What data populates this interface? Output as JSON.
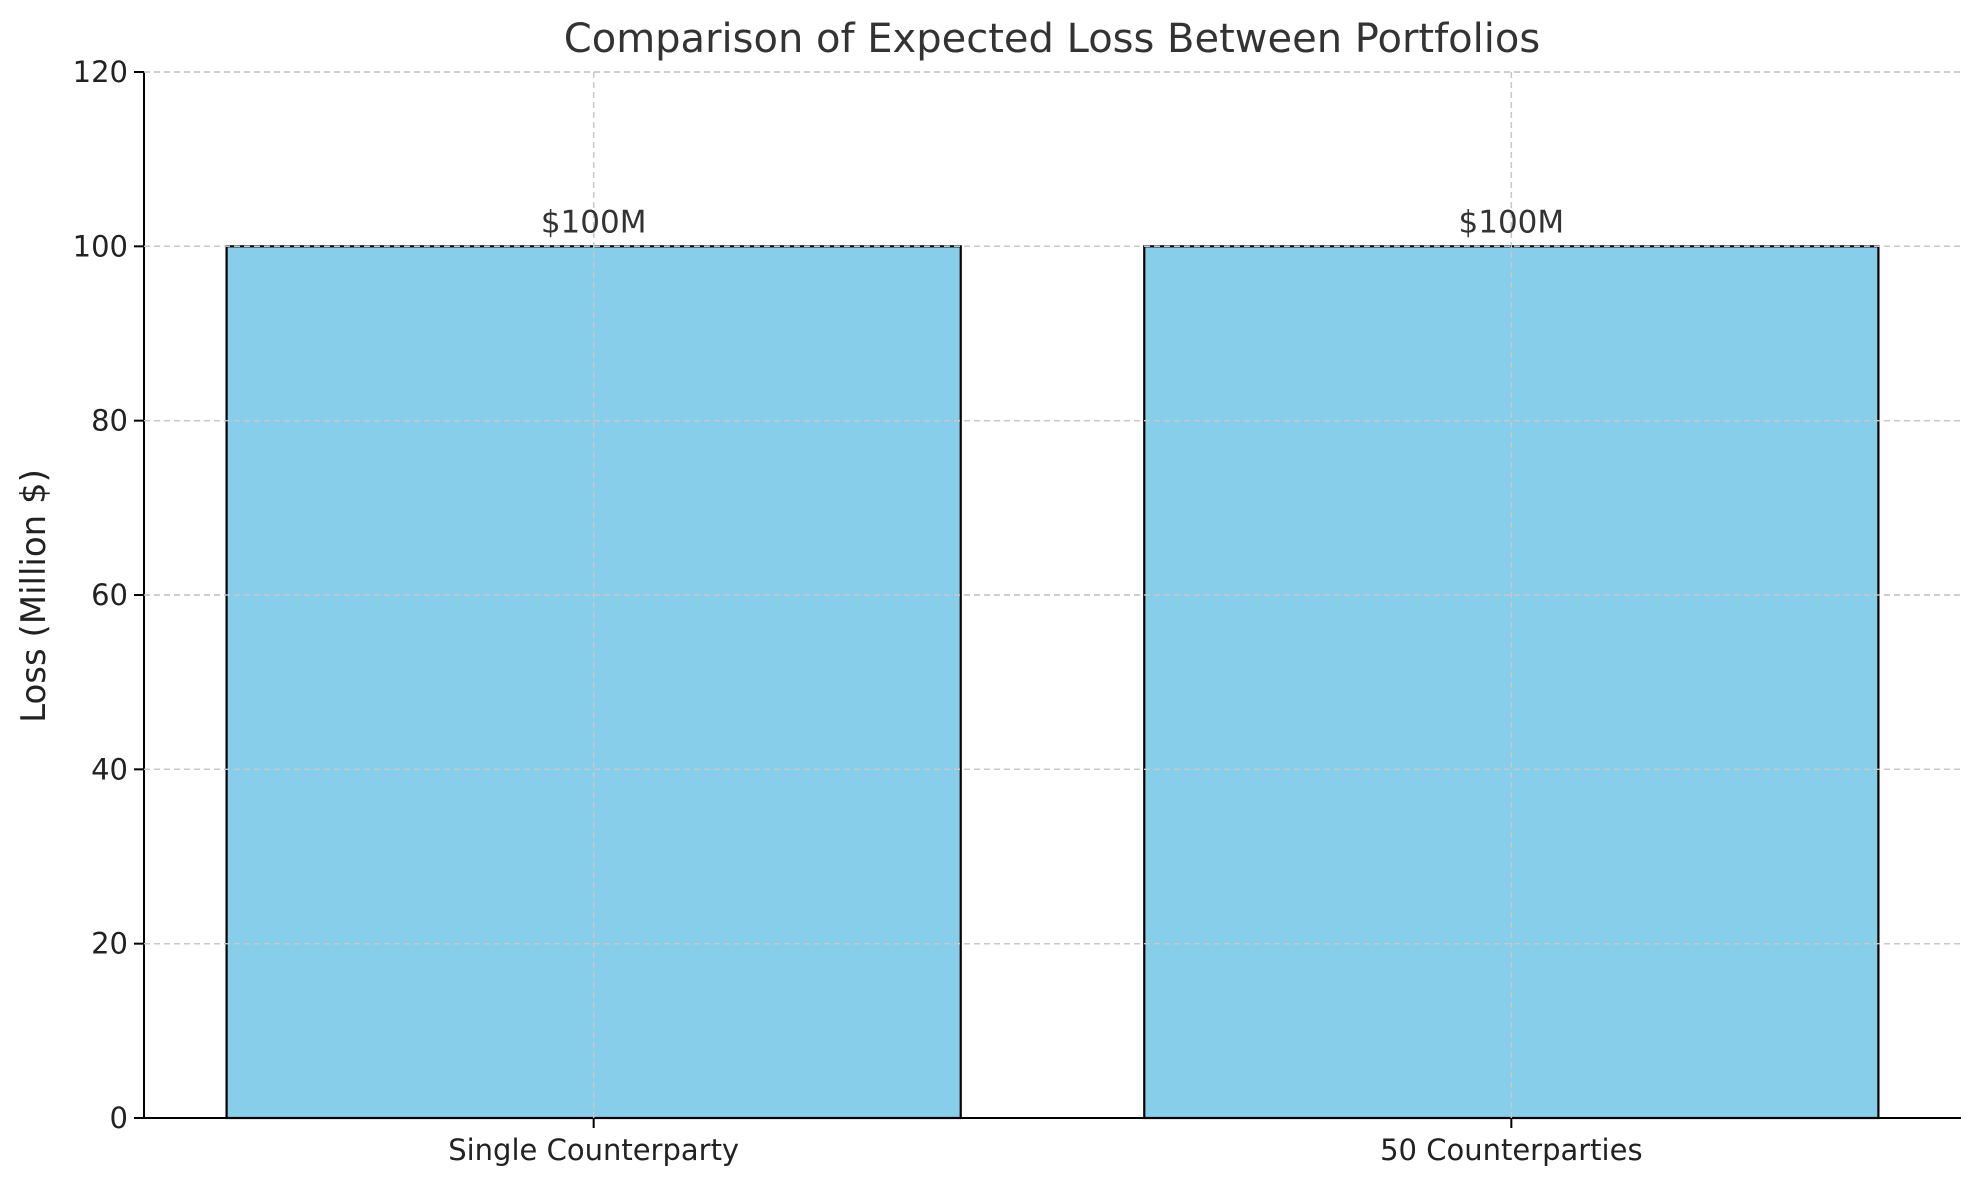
{
  "chart_data": {
    "type": "bar",
    "title": "Comparison of Expected Loss Between Portfolios",
    "xlabel": "",
    "ylabel": "Loss (Million $)",
    "categories": [
      "Single Counterparty",
      "50 Counterparties"
    ],
    "values": [
      100,
      100
    ],
    "data_labels": [
      "$100M",
      "$100M"
    ],
    "ylim": [
      0,
      120
    ],
    "yticks": [
      0,
      20,
      40,
      60,
      80,
      100,
      120
    ],
    "grid": true,
    "bar_color": "#87CEEB",
    "bar_edge_color": "#000000"
  }
}
